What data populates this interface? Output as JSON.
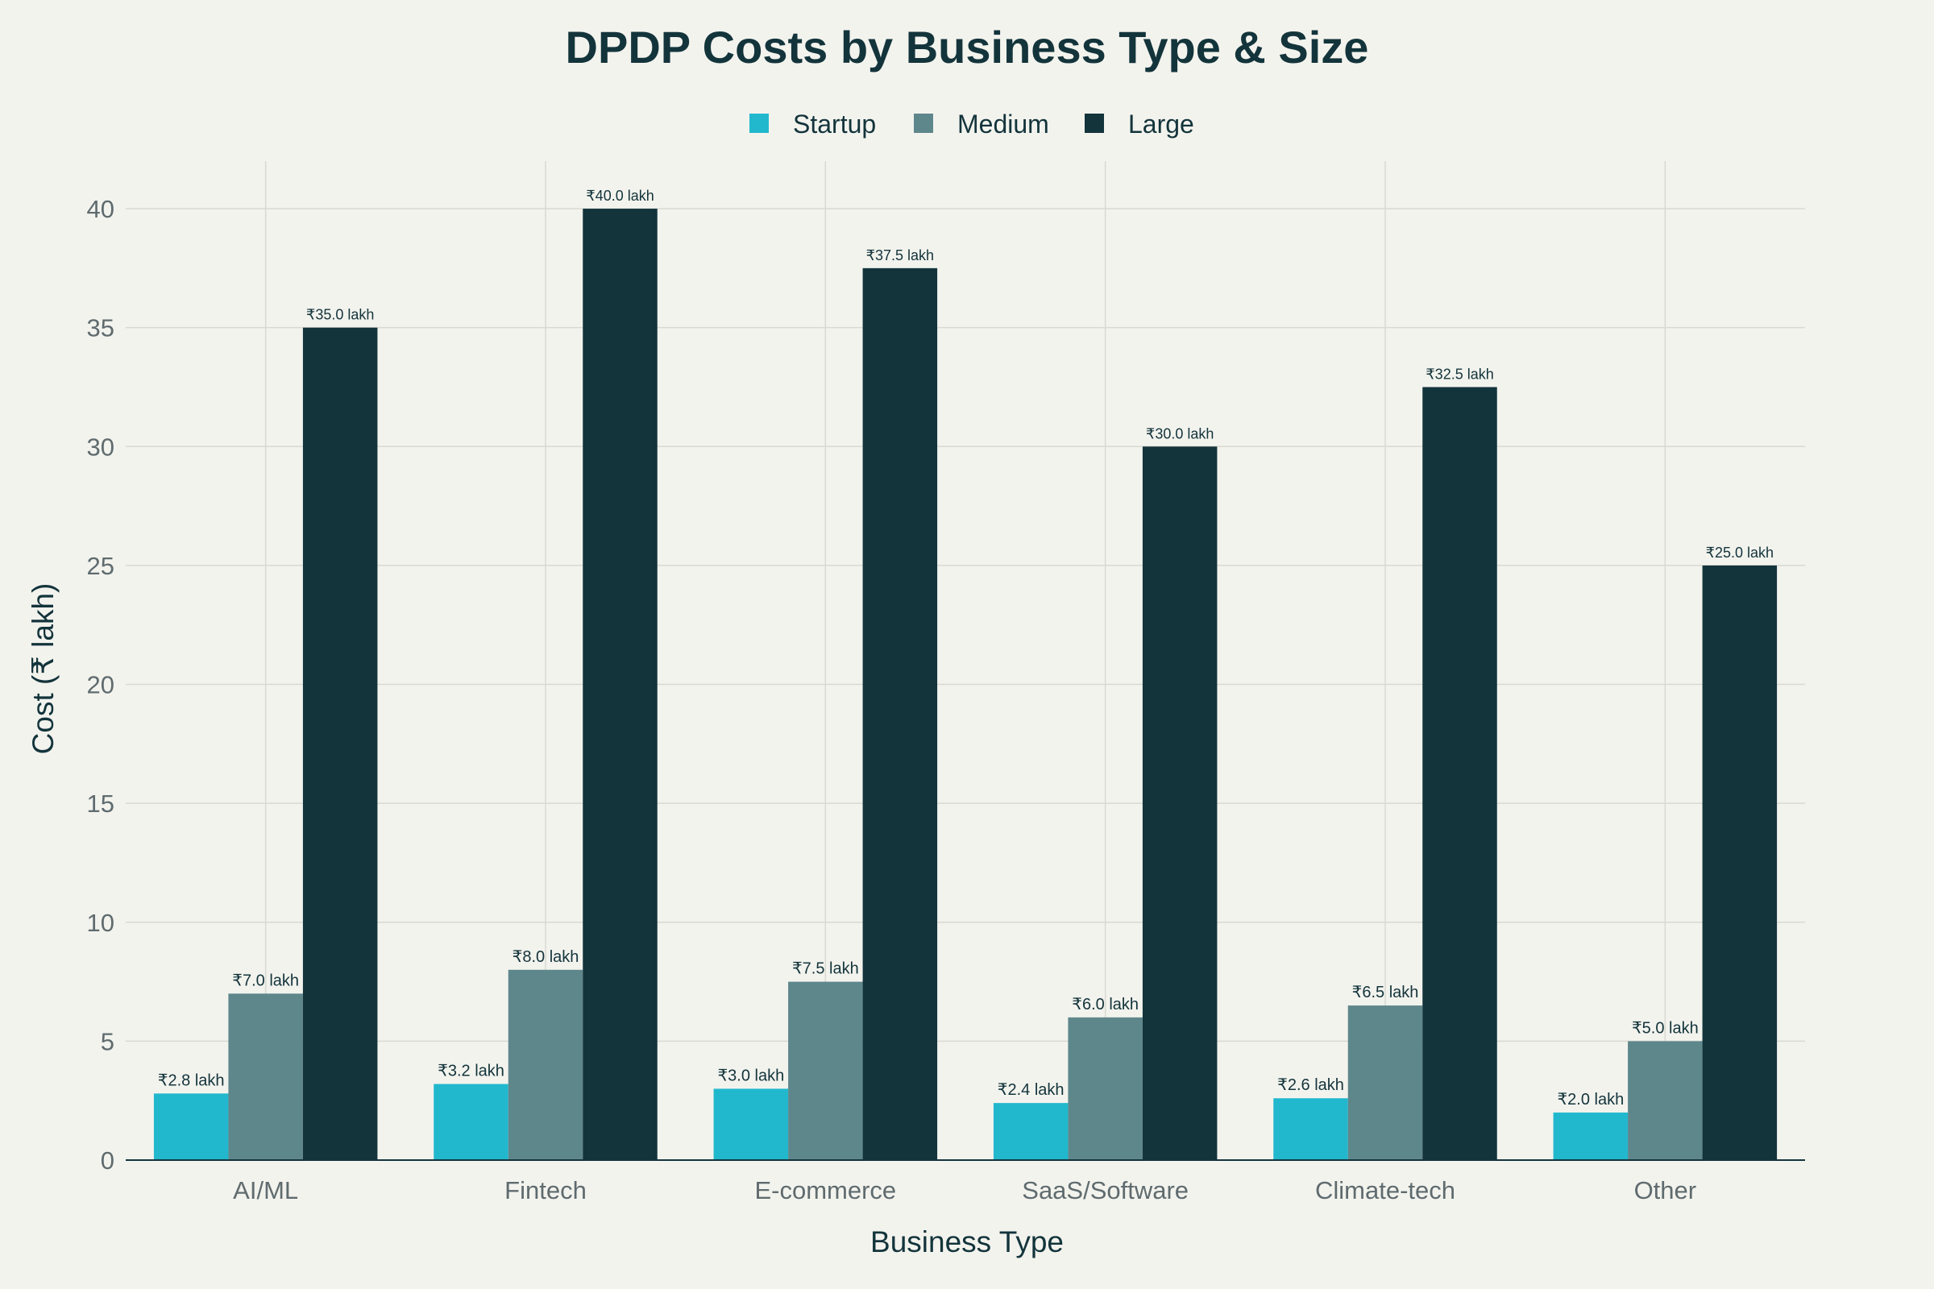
{
  "chart_data": {
    "type": "bar",
    "title": "DPDP Costs by Business Type & Size",
    "xlabel": "Business Type",
    "ylabel": "Cost (₹ lakh)",
    "ylim": [
      0,
      42
    ],
    "yticks": [
      0,
      5,
      10,
      15,
      20,
      25,
      30,
      35,
      40
    ],
    "grid": true,
    "legend_position": "top-center",
    "categories": [
      "AI/ML",
      "Fintech",
      "E-commerce",
      "SaaS/Software",
      "Climate-tech",
      "Other"
    ],
    "series": [
      {
        "name": "Startup",
        "color": "#21b8cd",
        "values": [
          2.8,
          3.2,
          3.0,
          2.4,
          2.6,
          2.0
        ],
        "labels": [
          "₹2.8 lakh",
          "₹3.2 lakh",
          "₹3.0 lakh",
          "₹2.4 lakh",
          "₹2.6 lakh",
          "₹2.0 lakh"
        ]
      },
      {
        "name": "Medium",
        "color": "#5e878c",
        "values": [
          7.0,
          8.0,
          7.5,
          6.0,
          6.5,
          5.0
        ],
        "labels": [
          "₹7.0 lakh",
          "₹8.0 lakh",
          "₹7.5 lakh",
          "₹6.0 lakh",
          "₹6.5 lakh",
          "₹5.0 lakh"
        ]
      },
      {
        "name": "Large",
        "color": "#13343b",
        "values": [
          35.0,
          40.0,
          37.5,
          30.0,
          32.5,
          25.0
        ],
        "labels": [
          "₹35.0 lakh",
          "₹40.0 lakh",
          "₹37.5 lakh",
          "₹30.0 lakh",
          "₹32.5 lakh",
          "₹25.0 lakh"
        ]
      }
    ]
  }
}
